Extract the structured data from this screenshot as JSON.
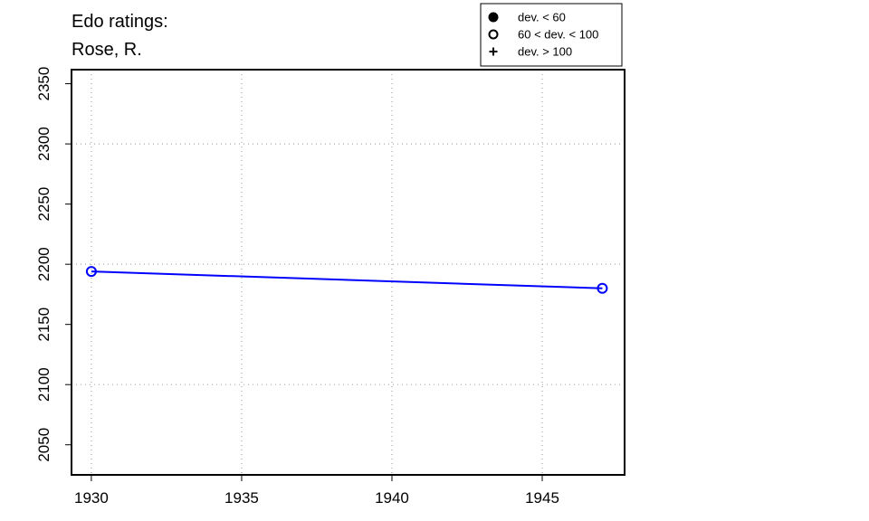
{
  "chart_data": {
    "type": "line",
    "title": [
      "Edo ratings:",
      "Rose, R."
    ],
    "x": [
      1930,
      1947
    ],
    "series": [
      {
        "values": [
          2194,
          2180
        ],
        "color": "#0000ff",
        "marker": "open-circle"
      }
    ],
    "xlim": [
      1929.34,
      1947.74
    ],
    "xticks": [
      1930,
      1935,
      1940,
      1945
    ],
    "ylim": [
      2025,
      2361.7
    ],
    "yticks": [
      2050,
      2100,
      2150,
      2200,
      2250,
      2300,
      2350
    ],
    "grid_x": [
      1930,
      1935,
      1940,
      1945
    ],
    "grid_y": [
      2100,
      2200,
      2300
    ],
    "legend_position": "top-right",
    "legend": [
      {
        "label": "dev. < 60",
        "symbol": "filled-circle"
      },
      {
        "label": "60 < dev. < 100",
        "symbol": "open-circle"
      },
      {
        "label": "dev. > 100",
        "symbol": "plus"
      }
    ]
  }
}
